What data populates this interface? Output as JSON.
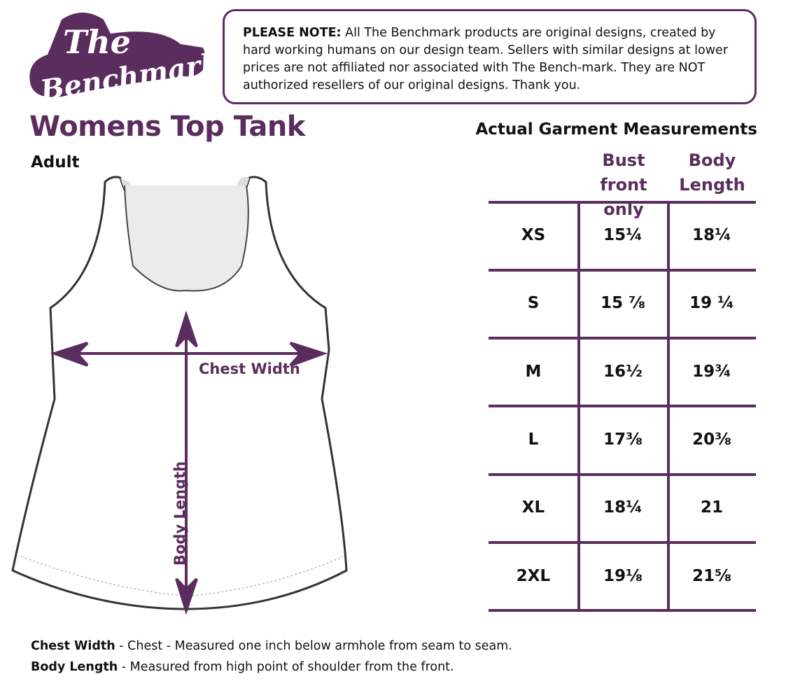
{
  "logo": {
    "text": "The Benchmark"
  },
  "note": {
    "bold": "PLEASE NOTE:",
    "text": " All The Benchmark products are original designs, created by hard working humans on our design team. Sellers with similar designs at lower prices are not affiliated nor associated with The Bench-mark. They are NOT authorized resellers of our original designs. Thank you."
  },
  "title": "Womens Top Tank",
  "subtitle": "Adult",
  "diagram": {
    "chest_label": "Chest Width",
    "length_label": "Body Length"
  },
  "table": {
    "title": "Actual Garment Measurements",
    "columns": [
      {
        "line1": "Bust",
        "line2": "front only"
      },
      {
        "line1": "Body",
        "line2": "Length"
      }
    ],
    "rows": [
      {
        "size": "XS",
        "bust": "15¼",
        "length": "18¼"
      },
      {
        "size": "S",
        "bust": "15 ⅞",
        "length": "19 ¼"
      },
      {
        "size": "M",
        "bust": "16½",
        "length": "19¾"
      },
      {
        "size": "L",
        "bust": "17⅜",
        "length": "20⅜"
      },
      {
        "size": "XL",
        "bust": "18¼",
        "length": "21"
      },
      {
        "size": "2XL",
        "bust": "19⅛",
        "length": "21⅝"
      }
    ]
  },
  "footnotes": [
    {
      "term": "Chest Width",
      "text": " - Chest - Measured one inch below armhole from seam to seam."
    },
    {
      "term": "Body Length",
      "text": " - Measured from high point of shoulder from the front."
    }
  ],
  "colors": {
    "accent": "#5a2d5e"
  }
}
